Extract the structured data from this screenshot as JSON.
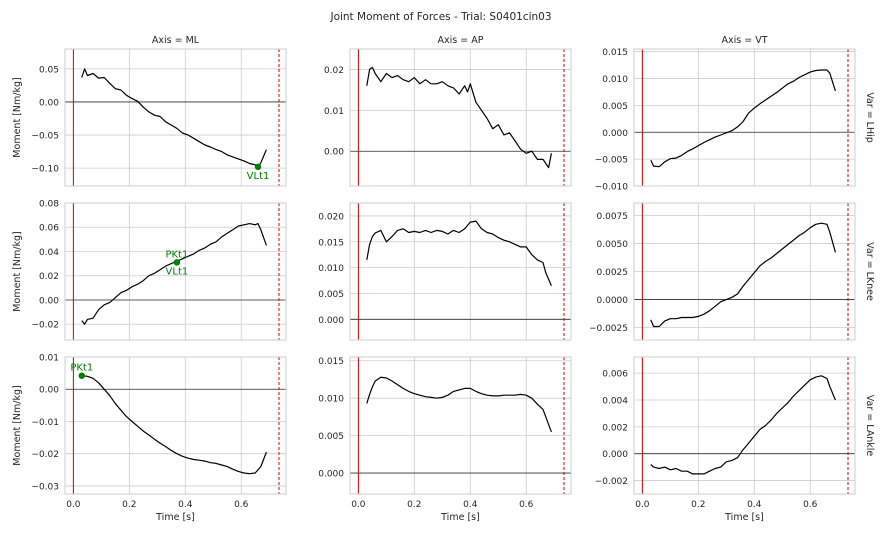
{
  "figure": {
    "title": "Joint Moment of Forces - Trial: S0401cin03",
    "col_titles": [
      "Axis = ML",
      "Axis = AP",
      "Axis = VT"
    ],
    "row_titles": [
      "Var = LHip",
      "Var = LKnee",
      "Var = LAnkle"
    ],
    "ylabel": "Moment [Nm/kg]",
    "xlabel": "Time [s]",
    "x_ticks": [
      "0.0",
      "0.2",
      "0.4",
      "0.6"
    ],
    "colors": {
      "curve": "#000000",
      "event_line": "#d40000",
      "zero_line": "#333333",
      "marker": "#008000",
      "grid": "#cccccc",
      "frame": "#cccccc"
    }
  },
  "chart_data": [
    {
      "type": "line",
      "row": 0,
      "col": 0,
      "xlim": [
        -0.03,
        0.76
      ],
      "ylim": [
        -0.127,
        0.08
      ],
      "yticks": [
        0.05,
        0.0,
        -0.05,
        -0.1
      ],
      "ytick_labels": [
        "0.05",
        "0.00",
        "−0.05",
        "−0.10"
      ],
      "vlines": [
        {
          "x": 0.0,
          "style": "solid"
        },
        {
          "x": 0.735,
          "style": "dashed"
        }
      ],
      "hline": 0,
      "x": [
        0.03,
        0.04,
        0.05,
        0.07,
        0.09,
        0.11,
        0.13,
        0.15,
        0.17,
        0.19,
        0.21,
        0.23,
        0.25,
        0.27,
        0.29,
        0.31,
        0.33,
        0.35,
        0.37,
        0.39,
        0.41,
        0.43,
        0.45,
        0.47,
        0.49,
        0.51,
        0.53,
        0.55,
        0.57,
        0.59,
        0.61,
        0.63,
        0.65,
        0.66,
        0.67,
        0.69
      ],
      "y": [
        0.037,
        0.05,
        0.04,
        0.043,
        0.036,
        0.037,
        0.028,
        0.02,
        0.018,
        0.01,
        0.005,
        0.001,
        -0.008,
        -0.015,
        -0.02,
        -0.022,
        -0.03,
        -0.035,
        -0.04,
        -0.047,
        -0.05,
        -0.055,
        -0.06,
        -0.065,
        -0.068,
        -0.072,
        -0.075,
        -0.08,
        -0.083,
        -0.086,
        -0.089,
        -0.093,
        -0.095,
        -0.098,
        -0.092,
        -0.072
      ],
      "points": [
        {
          "x": 0.66,
          "y": -0.098,
          "label": "VLt1",
          "label_pos": "below"
        }
      ]
    },
    {
      "type": "line",
      "row": 0,
      "col": 1,
      "xlim": [
        -0.03,
        0.76
      ],
      "ylim": [
        -0.0085,
        0.025
      ],
      "yticks": [
        0.02,
        0.01,
        0.0
      ],
      "ytick_labels": [
        "0.02",
        "0.01",
        "0.00"
      ],
      "vlines": [
        {
          "x": 0.0,
          "style": "solid"
        },
        {
          "x": 0.735,
          "style": "dashed"
        }
      ],
      "hline": 0,
      "x": [
        0.03,
        0.04,
        0.05,
        0.06,
        0.08,
        0.1,
        0.12,
        0.14,
        0.16,
        0.18,
        0.2,
        0.22,
        0.24,
        0.26,
        0.28,
        0.3,
        0.32,
        0.34,
        0.36,
        0.38,
        0.39,
        0.4,
        0.42,
        0.44,
        0.46,
        0.48,
        0.5,
        0.52,
        0.54,
        0.56,
        0.58,
        0.6,
        0.62,
        0.64,
        0.66,
        0.68,
        0.69
      ],
      "y": [
        0.016,
        0.02,
        0.0205,
        0.019,
        0.017,
        0.019,
        0.018,
        0.0185,
        0.0175,
        0.017,
        0.018,
        0.0165,
        0.0175,
        0.0165,
        0.0165,
        0.017,
        0.016,
        0.0155,
        0.014,
        0.016,
        0.0145,
        0.0165,
        0.012,
        0.01,
        0.008,
        0.0055,
        0.0065,
        0.004,
        0.0045,
        0.0025,
        0.0005,
        -0.0005,
        0.0,
        -0.002,
        -0.002,
        -0.004,
        -0.0005
      ],
      "points": []
    },
    {
      "type": "line",
      "row": 0,
      "col": 2,
      "xlim": [
        -0.03,
        0.76
      ],
      "ylim": [
        -0.01,
        0.0155
      ],
      "yticks": [
        0.015,
        0.01,
        0.005,
        0.0,
        -0.005,
        -0.01
      ],
      "ytick_labels": [
        "0.015",
        "0.010",
        "0.005",
        "0.000",
        "−0.005",
        "−0.010"
      ],
      "vlines": [
        {
          "x": 0.0,
          "style": "solid"
        },
        {
          "x": 0.735,
          "style": "dashed"
        }
      ],
      "hline": 0,
      "x": [
        0.03,
        0.04,
        0.06,
        0.08,
        0.1,
        0.12,
        0.14,
        0.16,
        0.18,
        0.2,
        0.22,
        0.24,
        0.26,
        0.28,
        0.3,
        0.32,
        0.34,
        0.36,
        0.38,
        0.4,
        0.42,
        0.44,
        0.46,
        0.48,
        0.5,
        0.52,
        0.54,
        0.56,
        0.58,
        0.6,
        0.62,
        0.64,
        0.66,
        0.67,
        0.69
      ],
      "y": [
        -0.0052,
        -0.0063,
        -0.0064,
        -0.0055,
        -0.0049,
        -0.0048,
        -0.0043,
        -0.0036,
        -0.0031,
        -0.0025,
        -0.0019,
        -0.0014,
        -0.0009,
        -0.0005,
        -0.0001,
        0.0003,
        0.001,
        0.002,
        0.0036,
        0.0045,
        0.0053,
        0.006,
        0.0067,
        0.0074,
        0.0082,
        0.009,
        0.0095,
        0.0102,
        0.0107,
        0.0112,
        0.0115,
        0.0116,
        0.0116,
        0.011,
        0.0077
      ],
      "points": []
    },
    {
      "type": "line",
      "row": 1,
      "col": 0,
      "xlim": [
        -0.03,
        0.76
      ],
      "ylim": [
        -0.033,
        0.08
      ],
      "yticks": [
        0.08,
        0.06,
        0.04,
        0.02,
        0.0,
        -0.02
      ],
      "ytick_labels": [
        "0.08",
        "0.06",
        "0.04",
        "0.02",
        "0.00",
        "−0.02"
      ],
      "vlines": [
        {
          "x": 0.0,
          "style": "solid"
        },
        {
          "x": 0.735,
          "style": "dashed"
        }
      ],
      "hline": 0,
      "x": [
        0.03,
        0.04,
        0.05,
        0.07,
        0.09,
        0.11,
        0.13,
        0.15,
        0.17,
        0.19,
        0.21,
        0.23,
        0.25,
        0.27,
        0.29,
        0.31,
        0.33,
        0.35,
        0.37,
        0.39,
        0.41,
        0.43,
        0.45,
        0.47,
        0.49,
        0.51,
        0.53,
        0.55,
        0.57,
        0.59,
        0.61,
        0.63,
        0.65,
        0.66,
        0.67,
        0.69
      ],
      "y": [
        -0.017,
        -0.02,
        -0.016,
        -0.015,
        -0.008,
        -0.004,
        -0.002,
        0.002,
        0.006,
        0.008,
        0.011,
        0.013,
        0.016,
        0.02,
        0.022,
        0.025,
        0.028,
        0.03,
        0.032,
        0.034,
        0.036,
        0.038,
        0.041,
        0.043,
        0.046,
        0.048,
        0.052,
        0.055,
        0.058,
        0.061,
        0.062,
        0.063,
        0.062,
        0.063,
        0.058,
        0.045
      ],
      "points": [
        {
          "x": 0.37,
          "y": 0.031,
          "label": "PKt1",
          "label_pos": "above"
        },
        {
          "x": 0.37,
          "y": 0.031,
          "label": "VLt1",
          "label_pos": "below"
        }
      ]
    },
    {
      "type": "line",
      "row": 1,
      "col": 1,
      "xlim": [
        -0.03,
        0.76
      ],
      "ylim": [
        -0.004,
        0.0225
      ],
      "yticks": [
        0.02,
        0.015,
        0.01,
        0.005,
        0.0
      ],
      "ytick_labels": [
        "0.020",
        "0.015",
        "0.010",
        "0.005",
        "0.000"
      ],
      "vlines": [
        {
          "x": 0.0,
          "style": "solid"
        },
        {
          "x": 0.735,
          "style": "dashed"
        }
      ],
      "hline": 0,
      "x": [
        0.03,
        0.04,
        0.05,
        0.06,
        0.08,
        0.1,
        0.12,
        0.14,
        0.16,
        0.18,
        0.2,
        0.22,
        0.24,
        0.26,
        0.28,
        0.3,
        0.32,
        0.34,
        0.36,
        0.38,
        0.4,
        0.42,
        0.44,
        0.46,
        0.48,
        0.5,
        0.52,
        0.54,
        0.56,
        0.58,
        0.6,
        0.62,
        0.64,
        0.66,
        0.67,
        0.69
      ],
      "y": [
        0.0115,
        0.0145,
        0.016,
        0.0167,
        0.0172,
        0.015,
        0.016,
        0.0172,
        0.0175,
        0.0168,
        0.017,
        0.0168,
        0.0172,
        0.0168,
        0.0172,
        0.017,
        0.0165,
        0.0172,
        0.0168,
        0.0175,
        0.0188,
        0.019,
        0.0175,
        0.0168,
        0.0165,
        0.0158,
        0.0153,
        0.015,
        0.0145,
        0.014,
        0.014,
        0.0125,
        0.0115,
        0.011,
        0.009,
        0.0065
      ],
      "points": []
    },
    {
      "type": "line",
      "row": 1,
      "col": 2,
      "xlim": [
        -0.03,
        0.76
      ],
      "ylim": [
        -0.0036,
        0.0086
      ],
      "yticks": [
        0.0075,
        0.005,
        0.0025,
        0.0,
        -0.0025
      ],
      "ytick_labels": [
        "0.0075",
        "0.0050",
        "0.0025",
        "0.0000",
        "−0.0025"
      ],
      "vlines": [
        {
          "x": 0.0,
          "style": "solid"
        },
        {
          "x": 0.735,
          "style": "dashed"
        }
      ],
      "hline": 0,
      "x": [
        0.03,
        0.04,
        0.06,
        0.08,
        0.1,
        0.12,
        0.14,
        0.16,
        0.18,
        0.2,
        0.22,
        0.24,
        0.26,
        0.28,
        0.3,
        0.32,
        0.34,
        0.36,
        0.38,
        0.4,
        0.42,
        0.44,
        0.46,
        0.48,
        0.5,
        0.52,
        0.54,
        0.56,
        0.58,
        0.6,
        0.62,
        0.64,
        0.66,
        0.67,
        0.69
      ],
      "y": [
        -0.0018,
        -0.0024,
        -0.0024,
        -0.0019,
        -0.0017,
        -0.0017,
        -0.0016,
        -0.0016,
        -0.0016,
        -0.0015,
        -0.0013,
        -0.001,
        -0.0006,
        -0.0002,
        0.0,
        0.0002,
        0.0005,
        0.0012,
        0.0018,
        0.0024,
        0.003,
        0.0034,
        0.0037,
        0.0041,
        0.0045,
        0.0049,
        0.0053,
        0.0057,
        0.006,
        0.0064,
        0.0067,
        0.0068,
        0.0067,
        0.006,
        0.0042
      ],
      "points": []
    },
    {
      "type": "line",
      "row": 2,
      "col": 0,
      "xlim": [
        -0.03,
        0.76
      ],
      "ylim": [
        -0.0325,
        0.01
      ],
      "yticks": [
        0.01,
        0.0,
        -0.01,
        -0.02,
        -0.03
      ],
      "ytick_labels": [
        "0.01",
        "0.00",
        "−0.01",
        "−0.02",
        "−0.03"
      ],
      "vlines": [
        {
          "x": 0.0,
          "style": "solid"
        },
        {
          "x": 0.735,
          "style": "dashed"
        }
      ],
      "hline": 0,
      "x": [
        0.03,
        0.05,
        0.07,
        0.09,
        0.11,
        0.13,
        0.15,
        0.17,
        0.19,
        0.21,
        0.23,
        0.25,
        0.27,
        0.29,
        0.31,
        0.33,
        0.35,
        0.37,
        0.39,
        0.41,
        0.43,
        0.45,
        0.47,
        0.49,
        0.51,
        0.53,
        0.55,
        0.57,
        0.59,
        0.61,
        0.63,
        0.65,
        0.67,
        0.69
      ],
      "y": [
        0.0042,
        0.004,
        0.0034,
        0.002,
        0.0,
        -0.002,
        -0.0045,
        -0.0065,
        -0.0085,
        -0.01,
        -0.0115,
        -0.013,
        -0.0142,
        -0.0155,
        -0.0167,
        -0.0178,
        -0.019,
        -0.02,
        -0.0208,
        -0.0214,
        -0.0218,
        -0.022,
        -0.0223,
        -0.0228,
        -0.023,
        -0.0235,
        -0.024,
        -0.0248,
        -0.0255,
        -0.026,
        -0.0262,
        -0.026,
        -0.024,
        -0.0195
      ],
      "points": [
        {
          "x": 0.03,
          "y": 0.0042,
          "label": "PKt1",
          "label_pos": "above"
        }
      ]
    },
    {
      "type": "line",
      "row": 2,
      "col": 1,
      "xlim": [
        -0.03,
        0.76
      ],
      "ylim": [
        -0.0028,
        0.0155
      ],
      "yticks": [
        0.015,
        0.01,
        0.005,
        0.0
      ],
      "ytick_labels": [
        "0.015",
        "0.010",
        "0.005",
        "0.000"
      ],
      "vlines": [
        {
          "x": 0.0,
          "style": "solid"
        },
        {
          "x": 0.735,
          "style": "dashed"
        }
      ],
      "hline": 0,
      "x": [
        0.03,
        0.04,
        0.05,
        0.06,
        0.08,
        0.1,
        0.12,
        0.14,
        0.16,
        0.18,
        0.2,
        0.22,
        0.24,
        0.26,
        0.28,
        0.3,
        0.32,
        0.34,
        0.36,
        0.38,
        0.4,
        0.42,
        0.44,
        0.46,
        0.48,
        0.5,
        0.52,
        0.54,
        0.56,
        0.58,
        0.6,
        0.62,
        0.64,
        0.66,
        0.67,
        0.69
      ],
      "y": [
        0.0093,
        0.0105,
        0.0115,
        0.0123,
        0.0128,
        0.0127,
        0.0123,
        0.0118,
        0.0113,
        0.0109,
        0.0106,
        0.0104,
        0.0102,
        0.0101,
        0.01,
        0.0101,
        0.0104,
        0.0109,
        0.0111,
        0.0113,
        0.0113,
        0.0109,
        0.0106,
        0.0104,
        0.0103,
        0.0103,
        0.0104,
        0.0104,
        0.0104,
        0.0105,
        0.0104,
        0.01,
        0.0092,
        0.0085,
        0.0075,
        0.0055
      ],
      "points": []
    },
    {
      "type": "line",
      "row": 2,
      "col": 2,
      "xlim": [
        -0.03,
        0.76
      ],
      "ylim": [
        -0.003,
        0.0072
      ],
      "yticks": [
        0.006,
        0.004,
        0.002,
        0.0,
        -0.002
      ],
      "ytick_labels": [
        "0.006",
        "0.004",
        "0.002",
        "0.000",
        "−0.002"
      ],
      "vlines": [
        {
          "x": 0.0,
          "style": "solid"
        },
        {
          "x": 0.735,
          "style": "dashed"
        }
      ],
      "hline": 0,
      "x": [
        0.03,
        0.04,
        0.06,
        0.08,
        0.1,
        0.12,
        0.14,
        0.16,
        0.18,
        0.2,
        0.22,
        0.24,
        0.26,
        0.28,
        0.3,
        0.32,
        0.34,
        0.36,
        0.38,
        0.4,
        0.42,
        0.44,
        0.46,
        0.48,
        0.5,
        0.52,
        0.54,
        0.56,
        0.58,
        0.6,
        0.62,
        0.64,
        0.66,
        0.67,
        0.69
      ],
      "y": [
        -0.0008,
        -0.001,
        -0.0011,
        -0.001,
        -0.0012,
        -0.0011,
        -0.0013,
        -0.0013,
        -0.0015,
        -0.0015,
        -0.0015,
        -0.0013,
        -0.0011,
        -0.001,
        -0.0006,
        -0.0005,
        -0.0003,
        0.0003,
        0.0008,
        0.0013,
        0.0018,
        0.0021,
        0.0025,
        0.003,
        0.0034,
        0.0038,
        0.0043,
        0.0047,
        0.0051,
        0.0055,
        0.0057,
        0.0058,
        0.0056,
        0.005,
        0.004
      ],
      "points": []
    }
  ]
}
